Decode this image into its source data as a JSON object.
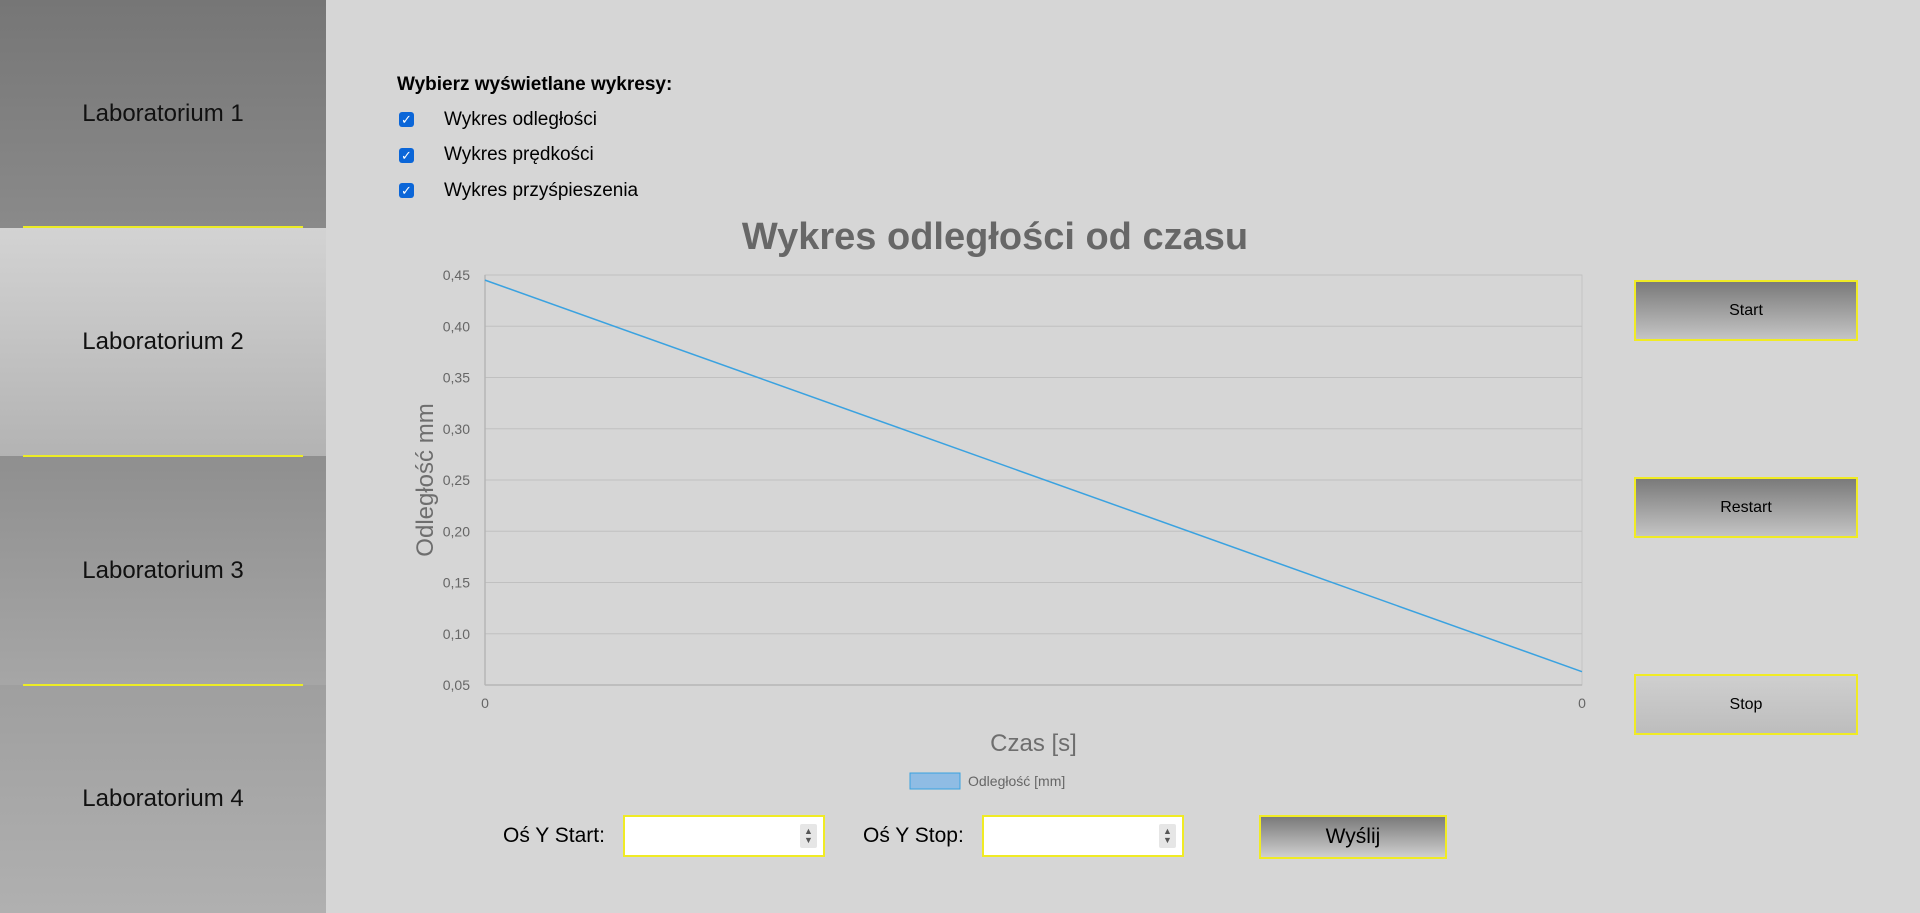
{
  "sidebar": {
    "items": [
      {
        "label": "Laboratorium 1"
      },
      {
        "label": "Laboratorium 2"
      },
      {
        "label": "Laboratorium 3"
      },
      {
        "label": "Laboratorium 4"
      }
    ]
  },
  "chart_selector": {
    "title": "Wybierz wyświetlane wykresy:",
    "options": [
      {
        "label": "Wykres odległości",
        "checked": true
      },
      {
        "label": "Wykres prędkości",
        "checked": true
      },
      {
        "label": "Wykres przyśpieszenia",
        "checked": true
      }
    ]
  },
  "controls": {
    "start": "Start",
    "restart": "Restart",
    "stop": "Stop"
  },
  "axis_form": {
    "y_start_label": "Oś Y Start:",
    "y_stop_label": "Oś Y Stop:",
    "y_start_value": "",
    "y_stop_value": "",
    "send_label": "Wyślij"
  },
  "colors": {
    "accent_border": "#f0eb24",
    "line": "#3aa2e0",
    "checkbox": "#0b66d8"
  },
  "chart_data": {
    "type": "line",
    "title": "Wykres odległości od czasu",
    "xlabel": "Czas [s]",
    "ylabel": "Odległość mm",
    "x_tick_labels": [
      "0",
      "0"
    ],
    "y_tick_labels": [
      "0,45",
      "0,40",
      "0,35",
      "0,30",
      "0,25",
      "0,20",
      "0,15",
      "0,10",
      "0,05"
    ],
    "ylim": [
      0.05,
      0.45
    ],
    "grid": true,
    "legend_position": "bottom",
    "series": [
      {
        "name": "Odległość [mm]",
        "color": "#3aa2e0",
        "points": [
          {
            "x_fraction": 0,
            "y": 0.445
          },
          {
            "x_fraction": 1,
            "y": 0.063
          }
        ]
      }
    ]
  }
}
